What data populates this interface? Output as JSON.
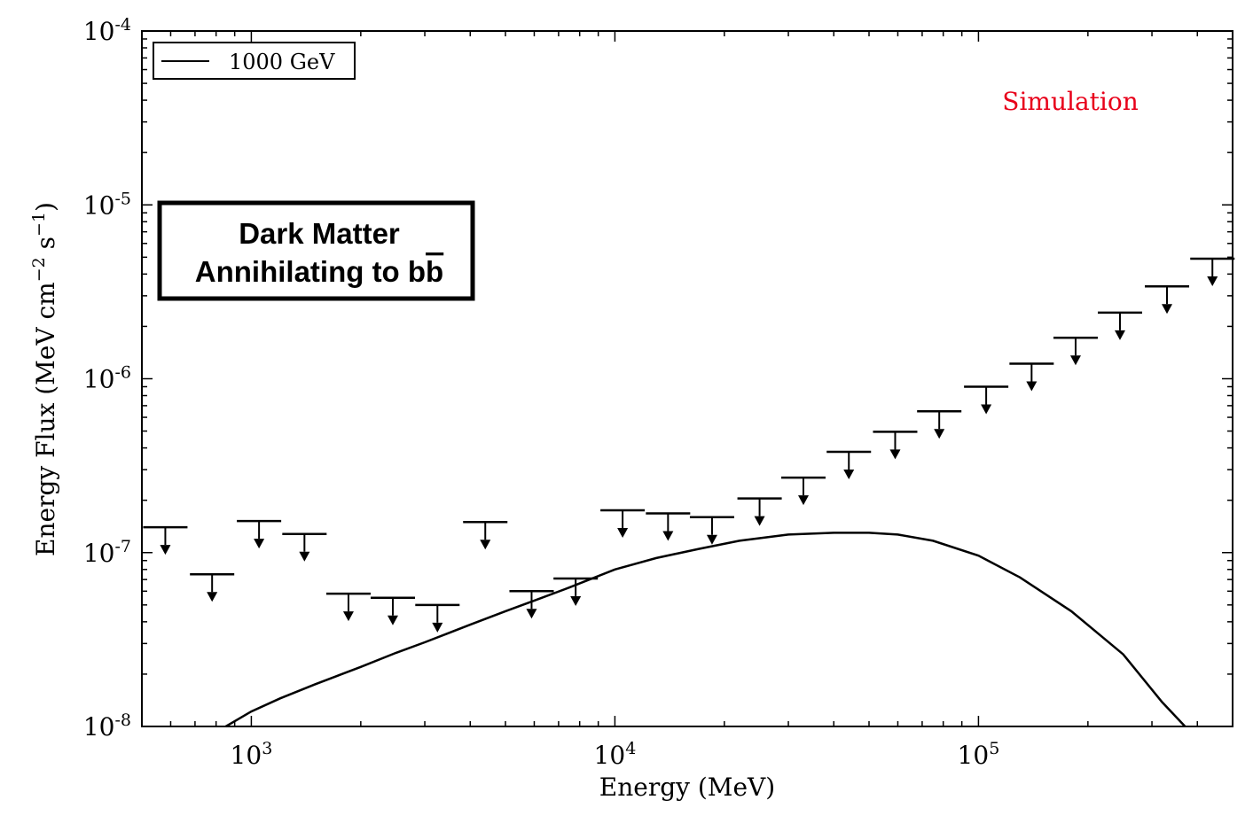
{
  "chart_data": {
    "type": "line",
    "xlabel": "Energy (MeV)",
    "ylabel": "Energy Flux (MeV cm",
    "ylabel_sup1": "−2",
    "ylabel_mid": " s",
    "ylabel_sup2": "−1",
    "ylabel_end": ")",
    "xscale": "log",
    "yscale": "log",
    "xlim": [
      500,
      500000
    ],
    "ylim": [
      1e-08,
      0.0001
    ],
    "xticks": [
      {
        "value": 1000,
        "base": "10",
        "exp": "3"
      },
      {
        "value": 10000,
        "base": "10",
        "exp": "4"
      },
      {
        "value": 100000,
        "base": "10",
        "exp": "5"
      }
    ],
    "yticks": [
      {
        "value": 1e-08,
        "base": "10",
        "exp": "-8"
      },
      {
        "value": 1e-07,
        "base": "10",
        "exp": "-7"
      },
      {
        "value": 1e-06,
        "base": "10",
        "exp": "-6"
      },
      {
        "value": 1e-05,
        "base": "10",
        "exp": "-5"
      },
      {
        "value": 0.0001,
        "base": "10",
        "exp": "-4"
      }
    ],
    "legend": {
      "placement": "top-left",
      "entries": [
        "1000 GeV"
      ]
    },
    "annotation_simulation": "Simulation",
    "annotation_box_line1": "Dark Matter",
    "annotation_box_line2_prefix": "Annihilating to b",
    "annotation_box_line2_bar": "b",
    "annotation_color": "#e8001a",
    "series": [
      {
        "name": "1000 GeV",
        "kind": "line",
        "x": [
          850,
          1000,
          1200,
          1500,
          2000,
          2500,
          3000,
          4000,
          5000,
          6000,
          7500,
          10000,
          13000,
          17000,
          22000,
          30000,
          40000,
          50000,
          60000,
          75000,
          100000,
          130000,
          180000,
          250000,
          320000,
          370000
        ],
        "y": [
          1e-08,
          1.22e-08,
          1.45e-08,
          1.75e-08,
          2.2e-08,
          2.65e-08,
          3.05e-08,
          3.85e-08,
          4.6e-08,
          5.3e-08,
          6.3e-08,
          8e-08,
          9.3e-08,
          1.05e-07,
          1.17e-07,
          1.27e-07,
          1.3e-07,
          1.3e-07,
          1.27e-07,
          1.17e-07,
          9.6e-08,
          7.2e-08,
          4.6e-08,
          2.6e-08,
          1.38e-08,
          1e-08
        ]
      },
      {
        "kind": "upper_limits",
        "x": [
          580,
          780,
          1050,
          1400,
          1850,
          2450,
          3250,
          4400,
          5900,
          7800,
          10500,
          14000,
          18500,
          25000,
          33000,
          44000,
          59000,
          78000,
          105000,
          140000,
          185000,
          245000,
          330000,
          440000
        ],
        "y": [
          1.4e-07,
          7.5e-08,
          1.52e-07,
          1.28e-07,
          5.8e-08,
          5.5e-08,
          5e-08,
          1.5e-07,
          6e-08,
          7.1e-08,
          1.75e-07,
          1.68e-07,
          1.6e-07,
          2.05e-07,
          2.7e-07,
          3.8e-07,
          4.95e-07,
          6.5e-07,
          9e-07,
          1.22e-06,
          1.72e-06,
          2.4e-06,
          3.4e-06,
          4.9e-06
        ]
      }
    ]
  }
}
